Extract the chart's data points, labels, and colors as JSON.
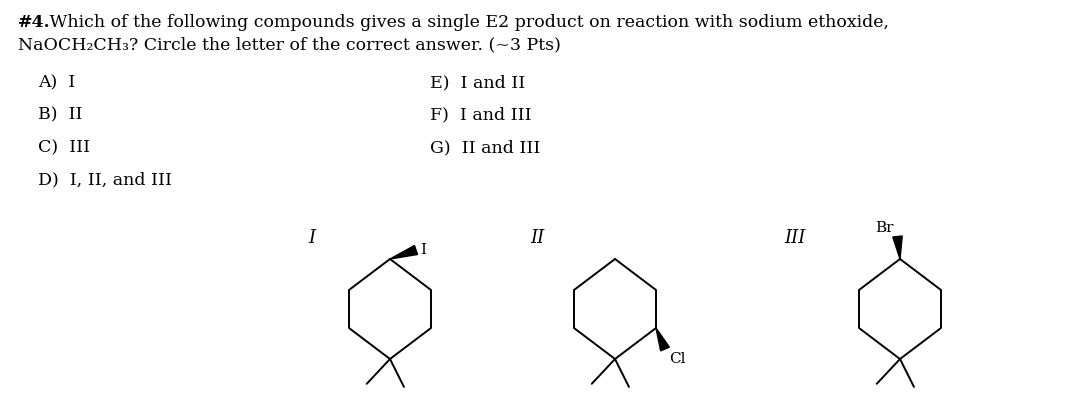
{
  "title_bold": "#4.",
  "title_rest": " Which of the following compounds gives a single E2 product on reaction with sodium ethoxide,",
  "title_line2": "NaOCH₂CH₃? Circle the letter of the correct answer. (~3 Pts)",
  "choices_left": [
    "A)  I",
    "B)  II",
    "C)  III",
    "D)  I, II, and III"
  ],
  "choices_right": [
    "E)  I and II",
    "F)  I and III",
    "G)  II and III"
  ],
  "compound_labels": [
    "I",
    "II",
    "III"
  ],
  "halogen_labels": [
    "I",
    "Cl",
    "Br"
  ],
  "background_color": "#ffffff",
  "text_color": "#000000",
  "font_size_title": 12.5,
  "font_size_choices": 12.5,
  "font_size_labels": 13,
  "line_width": 1.4
}
